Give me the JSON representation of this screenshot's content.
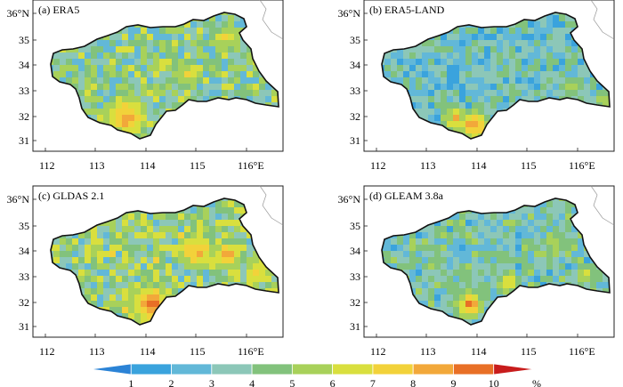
{
  "panels": [
    {
      "id": "a",
      "label": "(a) ERA5"
    },
    {
      "id": "b",
      "label": "(b) ERA5-LAND"
    },
    {
      "id": "c",
      "label": "(c) GLDAS 2.1"
    },
    {
      "id": "d",
      "label": "(d) GLEAM 3.8a"
    }
  ],
  "axes": {
    "lon_ticks": [
      "112",
      "113",
      "114",
      "115",
      "116°E"
    ],
    "lat_ticks": [
      "36°N",
      "35",
      "34",
      "33",
      "32",
      "31"
    ]
  },
  "colorbar": {
    "ticks": [
      "1",
      "2",
      "3",
      "4",
      "5",
      "6",
      "7",
      "8",
      "9",
      "10"
    ],
    "unit": "%",
    "colors": [
      "#2b83d6",
      "#3aa3dd",
      "#62b8d8",
      "#8cc7b8",
      "#82c27c",
      "#a8d15a",
      "#d9df3e",
      "#f2d23a",
      "#f2a83a",
      "#e86f26",
      "#c81c1c"
    ]
  }
}
